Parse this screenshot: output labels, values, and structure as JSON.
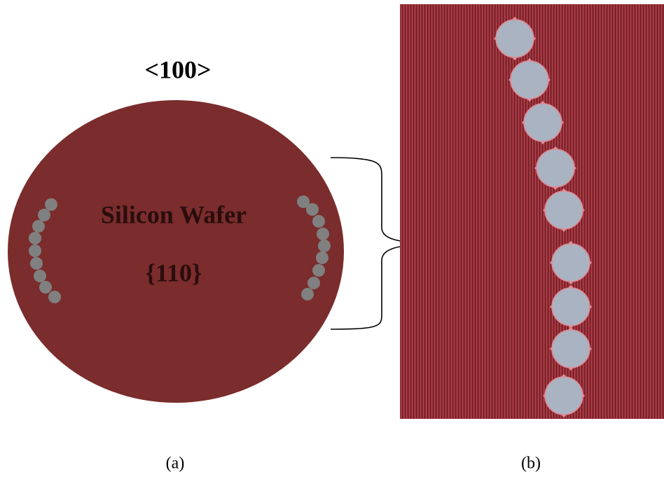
{
  "wafer": {
    "orientation": "<100>",
    "label": "Silicon Wafer",
    "plane": "{110}"
  },
  "captions": [
    "(a)",
    "(b)"
  ]
}
